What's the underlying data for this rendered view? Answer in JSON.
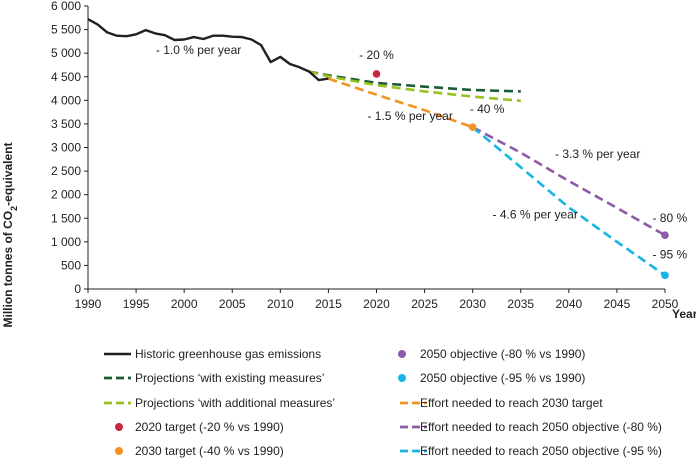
{
  "chart_data": {
    "type": "line",
    "ylabel_main": "Million tonnes of CO",
    "ylabel_sub": "2",
    "ylabel_tail": "-equivalent",
    "xlabel": "Year",
    "xlim": [
      1990,
      2050
    ],
    "ylim": [
      0,
      6000
    ],
    "x_ticks": [
      1990,
      1995,
      2000,
      2005,
      2010,
      2015,
      2020,
      2025,
      2030,
      2035,
      2040,
      2045,
      2050
    ],
    "y_ticks": [
      0,
      500,
      1000,
      1500,
      2000,
      2500,
      3000,
      3500,
      4000,
      4500,
      5000,
      5500,
      6000
    ],
    "y_tick_labels": [
      "0",
      "500",
      "1 000",
      "1 500",
      "2 000",
      "2 500",
      "3 000",
      "3 500",
      "4 000",
      "4 500",
      "5 000",
      "5 500",
      "6 000"
    ],
    "series": [
      {
        "name": "Historic greenhouse gas emissions",
        "color": "#231f20",
        "style": "solid",
        "x": [
          1990,
          1991,
          1992,
          1993,
          1994,
          1995,
          1996,
          1997,
          1998,
          1999,
          2000,
          2001,
          2002,
          2003,
          2004,
          2005,
          2006,
          2007,
          2008,
          2009,
          2010,
          2011,
          2012,
          2013,
          2014,
          2015
        ],
        "y": [
          5720,
          5610,
          5440,
          5370,
          5360,
          5400,
          5490,
          5420,
          5380,
          5280,
          5290,
          5340,
          5300,
          5370,
          5370,
          5350,
          5340,
          5290,
          5170,
          4810,
          4920,
          4770,
          4700,
          4610,
          4430,
          4460
        ]
      },
      {
        "name": "Projections ‘with existing measures’",
        "color": "#1a5c35",
        "style": "dashed",
        "x": [
          2013,
          2015,
          2020,
          2025,
          2030,
          2035
        ],
        "y": [
          4610,
          4530,
          4370,
          4290,
          4220,
          4190
        ]
      },
      {
        "name": "Projections ‘with additional measures’",
        "color": "#99c11f",
        "style": "dashed",
        "x": [
          2013,
          2015,
          2020,
          2025,
          2030,
          2035
        ],
        "y": [
          4610,
          4510,
          4320,
          4190,
          4080,
          3990
        ]
      },
      {
        "name": "2020 target (-20 % vs 1990)",
        "color": "#c8273e",
        "style": "point",
        "x": [
          2020
        ],
        "y": [
          4560
        ]
      },
      {
        "name": "2030 target (-40 % vs 1990)",
        "color": "#f39321",
        "style": "point",
        "x": [
          2030
        ],
        "y": [
          3430
        ]
      },
      {
        "name": "2050 objective (-80 % vs 1990)",
        "color": "#8e5aa8",
        "style": "point",
        "x": [
          2050
        ],
        "y": [
          1140
        ]
      },
      {
        "name": "2050 objective (-95 % vs 1990)",
        "color": "#17b4e4",
        "style": "point",
        "x": [
          2050
        ],
        "y": [
          290
        ]
      },
      {
        "name": "Effort needed to reach 2030 target",
        "color": "#f39321",
        "style": "dashed",
        "x": [
          2015,
          2020,
          2025,
          2030
        ],
        "y": [
          4460,
          4120,
          3790,
          3430
        ]
      },
      {
        "name": "Effort needed to reach 2050 objective (-80 %)",
        "color": "#8e5aa8",
        "style": "dashed",
        "x": [
          2030,
          2035,
          2040,
          2045,
          2050
        ],
        "y": [
          3430,
          2890,
          2290,
          1720,
          1140
        ]
      },
      {
        "name": "Effort needed to reach 2050 objective (-95 %)",
        "color": "#17b4e4",
        "style": "dashed",
        "x": [
          2030,
          2035,
          2040,
          2045,
          2050
        ],
        "y": [
          3430,
          2580,
          1730,
          1000,
          290
        ]
      }
    ],
    "annotations": [
      {
        "text": "- 1.0 % per year",
        "x": 2001.5,
        "y": 4980
      },
      {
        "text": "- 20 %",
        "x": 2020,
        "y": 4880
      },
      {
        "text": "- 1.5 % per year",
        "x": 2023.5,
        "y": 3580
      },
      {
        "text": "- 40 %",
        "x": 2031.5,
        "y": 3730
      },
      {
        "text": "- 3.3 % per year",
        "x": 2043,
        "y": 2780
      },
      {
        "text": "- 4.6 % per year",
        "x": 2036.5,
        "y": 1500
      },
      {
        "text": "- 80 %",
        "x": 2050.5,
        "y": 1420
      },
      {
        "text": "- 95 %",
        "x": 2050.5,
        "y": 650
      }
    ],
    "legend": {
      "placement": "bottom",
      "left_column": [
        0,
        1,
        2,
        3,
        4
      ],
      "right_column": [
        5,
        6,
        7,
        8,
        9
      ]
    }
  }
}
